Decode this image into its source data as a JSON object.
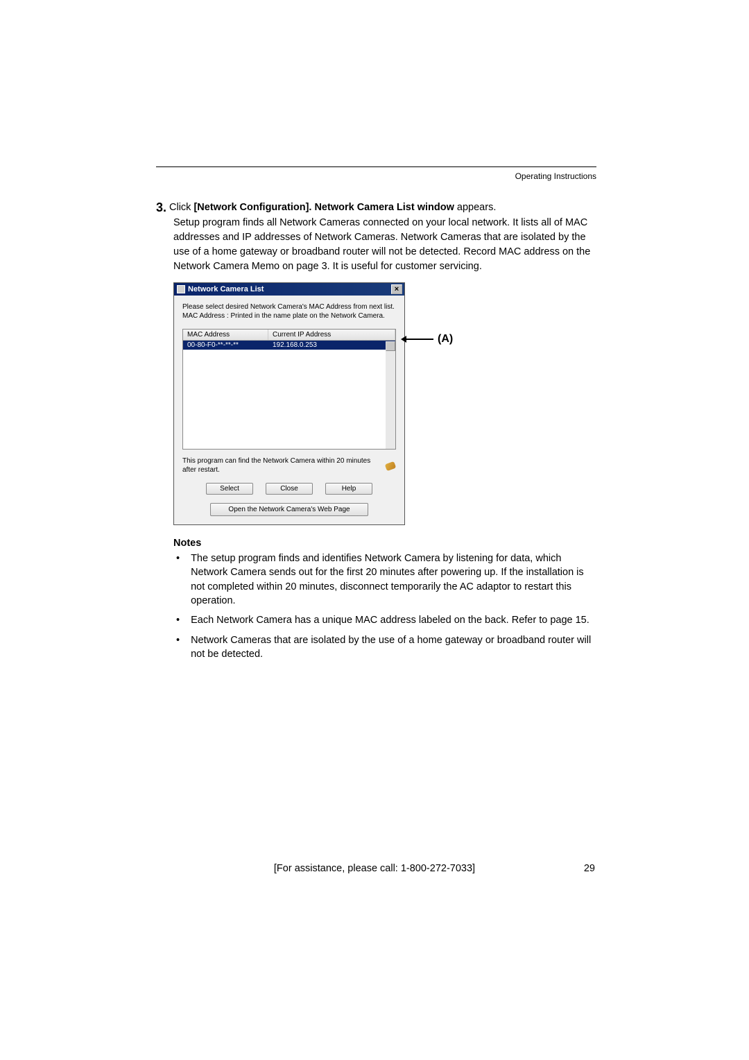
{
  "header": {
    "label": "Operating Instructions"
  },
  "step": {
    "number": "3.",
    "prefix": "Click ",
    "bold": "[Network Configuration]. Network Camera List window",
    "suffix": " appears."
  },
  "paragraph": "Setup program finds all Network Cameras connected on your local network. It lists all of MAC addresses and IP addresses of Network Cameras. Network Cameras that are isolated by the use of a home gateway or broadband router will not be detected. Record MAC address on the Network Camera Memo on page 3. It is useful for customer servicing.",
  "dialog": {
    "title": "Network Camera List",
    "msg1": "Please select desired Network Camera's  MAC Address from next list.",
    "msg2": "MAC Address : Printed in the name plate on the Network Camera.",
    "col1": "MAC Address",
    "col2": "Current IP Address",
    "row_mac": "00-80-F0-**-**-**",
    "row_ip": "192.168.0.253",
    "hint": "This program can find the Network Camera within 20 minutes after restart.",
    "btn_select": "Select",
    "btn_close": "Close",
    "btn_help": "Help",
    "btn_open": "Open the Network Camera's Web Page"
  },
  "callout": {
    "label": "(A)"
  },
  "notes": {
    "heading": "Notes",
    "items": [
      "The setup program finds and identifies Network Camera by listening for data, which Network Camera sends out for the first 20 minutes after powering up. If the installation is not completed within 20 minutes, disconnect temporarily the AC adaptor to restart this operation.",
      "Each Network Camera has a unique MAC address labeled on the back. Refer to page 15.",
      "Network Cameras that are isolated by the use of a home gateway or broadband router will not be detected."
    ]
  },
  "footer": {
    "assist": "[For assistance, please call: 1-800-272-7033]",
    "page": "29"
  }
}
